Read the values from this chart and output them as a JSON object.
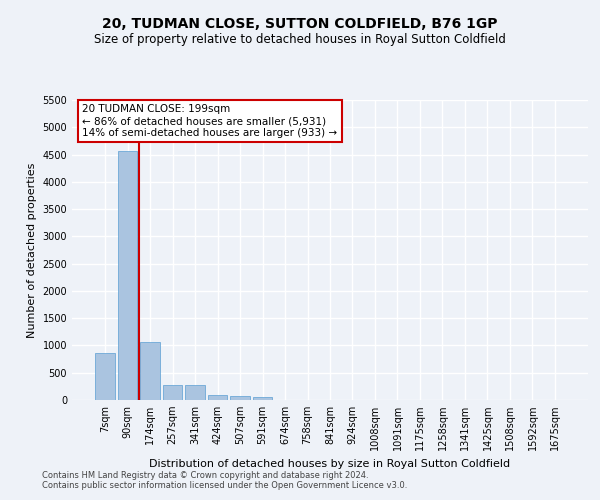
{
  "title": "20, TUDMAN CLOSE, SUTTON COLDFIELD, B76 1GP",
  "subtitle": "Size of property relative to detached houses in Royal Sutton Coldfield",
  "xlabel": "Distribution of detached houses by size in Royal Sutton Coldfield",
  "ylabel": "Number of detached properties",
  "footnote1": "Contains HM Land Registry data © Crown copyright and database right 2024.",
  "footnote2": "Contains public sector information licensed under the Open Government Licence v3.0.",
  "bar_labels": [
    "7sqm",
    "90sqm",
    "174sqm",
    "257sqm",
    "341sqm",
    "424sqm",
    "507sqm",
    "591sqm",
    "674sqm",
    "758sqm",
    "841sqm",
    "924sqm",
    "1008sqm",
    "1091sqm",
    "1175sqm",
    "1258sqm",
    "1341sqm",
    "1425sqm",
    "1508sqm",
    "1592sqm",
    "1675sqm"
  ],
  "bar_values": [
    870,
    4560,
    1060,
    280,
    280,
    85,
    75,
    50,
    0,
    0,
    0,
    0,
    0,
    0,
    0,
    0,
    0,
    0,
    0,
    0,
    0
  ],
  "bar_color": "#aac4e0",
  "bar_edge_color": "#5a9fd4",
  "highlight_bar_index": 2,
  "highlight_color": "#cc0000",
  "annotation_text": "20 TUDMAN CLOSE: 199sqm\n← 86% of detached houses are smaller (5,931)\n14% of semi-detached houses are larger (933) →",
  "annotation_box_color": "white",
  "annotation_edge_color": "#cc0000",
  "ylim": [
    0,
    5500
  ],
  "yticks": [
    0,
    500,
    1000,
    1500,
    2000,
    2500,
    3000,
    3500,
    4000,
    4500,
    5000,
    5500
  ],
  "bg_color": "#eef2f8",
  "plot_bg_color": "#eef2f8",
  "grid_color": "#ffffff",
  "title_fontsize": 10,
  "subtitle_fontsize": 8.5,
  "axis_label_fontsize": 8,
  "tick_fontsize": 7,
  "footnote_fontsize": 6
}
